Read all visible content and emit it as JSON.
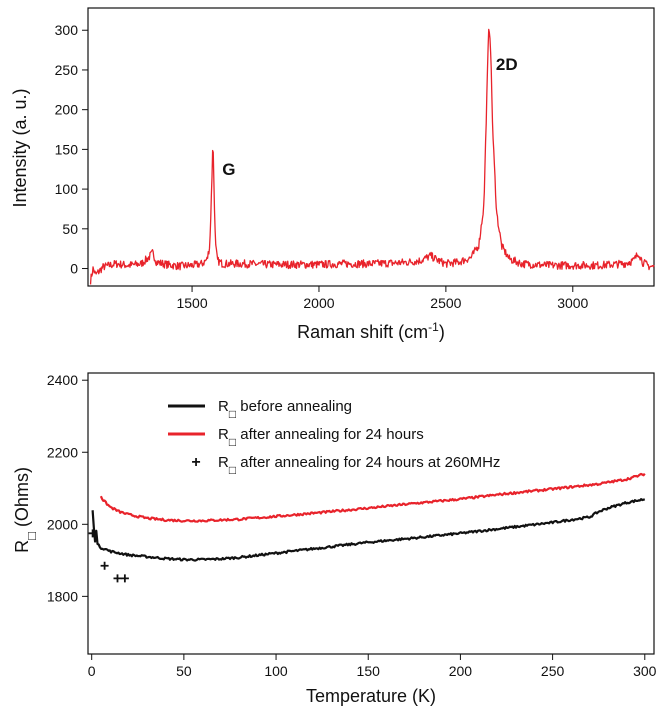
{
  "chart_data": [
    {
      "type": "line",
      "xlabel": "Raman shift (cm",
      "xlabel_sup": "-1",
      "xlabel_end": ")",
      "ylabel": "Intensity (a. u.)",
      "xlim": [
        1090,
        3320
      ],
      "ylim": [
        -22,
        328
      ],
      "xticks": [
        1500,
        2000,
        2500,
        3000
      ],
      "yticks": [
        0,
        50,
        100,
        150,
        200,
        250,
        300
      ],
      "annotations": [
        {
          "text": "G",
          "x": 1645,
          "y": 118
        },
        {
          "text": "2D",
          "x": 2740,
          "y": 250
        }
      ],
      "series": [
        {
          "color": "#e8232b",
          "noise_amplitude": 5,
          "x": [
            1100,
            1110,
            1120,
            1150,
            1200,
            1250,
            1300,
            1330,
            1345,
            1360,
            1400,
            1450,
            1500,
            1540,
            1560,
            1570,
            1578,
            1582,
            1586,
            1592,
            1600,
            1620,
            1700,
            1800,
            1900,
            2000,
            2100,
            2200,
            2300,
            2350,
            2400,
            2440,
            2470,
            2500,
            2550,
            2600,
            2630,
            2650,
            2660,
            2668,
            2672,
            2676,
            2685,
            2700,
            2720,
            2750,
            2800,
            2900,
            3000,
            3100,
            3200,
            3240,
            3260,
            3275,
            3300,
            3320
          ],
          "y": [
            -15,
            0,
            -8,
            2,
            6,
            4,
            6,
            14,
            20,
            8,
            5,
            3,
            4,
            6,
            12,
            30,
            110,
            165,
            110,
            30,
            10,
            6,
            6,
            5,
            5,
            5,
            6,
            6,
            7,
            8,
            10,
            16,
            10,
            6,
            8,
            14,
            30,
            80,
            200,
            295,
            303,
            280,
            170,
            70,
            28,
            12,
            6,
            4,
            4,
            4,
            6,
            10,
            20,
            8,
            3,
            2
          ]
        }
      ]
    },
    {
      "type": "line",
      "xlabel": "Temperature (K)",
      "ylabel": "R",
      "ylabel_sub": "□",
      "ylabel_end": " (Ohms)",
      "xlim": [
        -2,
        305
      ],
      "ylim": [
        1640,
        2420
      ],
      "xticks": [
        0,
        50,
        100,
        150,
        200,
        250,
        300
      ],
      "yticks": [
        1800,
        2000,
        2200,
        2400
      ],
      "legend_position": "top",
      "legend": [
        {
          "prefix": "R",
          "sub": "□",
          "text": " before annealing"
        },
        {
          "prefix": "R",
          "sub": "□",
          "text": " after annealing for 24 hours"
        },
        {
          "prefix": "R",
          "sub": "□",
          "text": " after annealing for 24 hours at 260MHz"
        }
      ],
      "series": [
        {
          "style": "line",
          "color": "#111111",
          "noise_amplitude": 3,
          "x": [
            0.5,
            1,
            1.5,
            2,
            2.5,
            3,
            4,
            5,
            8,
            10,
            15,
            20,
            30,
            40,
            50,
            60,
            70,
            80,
            90,
            100,
            125,
            150,
            175,
            200,
            225,
            250,
            270,
            275,
            280,
            290,
            300
          ],
          "y": [
            2040,
            2000,
            1965,
            1950,
            1985,
            1945,
            1940,
            1935,
            1930,
            1925,
            1920,
            1915,
            1910,
            1905,
            1902,
            1902,
            1904,
            1908,
            1914,
            1920,
            1935,
            1950,
            1962,
            1975,
            1990,
            2005,
            2020,
            2035,
            2045,
            2060,
            2070
          ]
        },
        {
          "style": "line",
          "color": "#e8232b",
          "noise_amplitude": 3,
          "x": [
            5,
            6,
            8,
            10,
            15,
            20,
            30,
            40,
            50,
            60,
            70,
            80,
            90,
            100,
            125,
            150,
            175,
            200,
            225,
            250,
            275,
            290,
            300
          ],
          "y": [
            2080,
            2068,
            2058,
            2048,
            2035,
            2027,
            2017,
            2012,
            2010,
            2010,
            2012,
            2014,
            2018,
            2022,
            2033,
            2045,
            2058,
            2070,
            2085,
            2098,
            2112,
            2125,
            2140
          ]
        },
        {
          "style": "marker",
          "marker": "+",
          "color": "#111111",
          "x": [
            0.5,
            7,
            14,
            18
          ],
          "y": [
            1975,
            1885,
            1850,
            1850
          ]
        }
      ]
    }
  ]
}
